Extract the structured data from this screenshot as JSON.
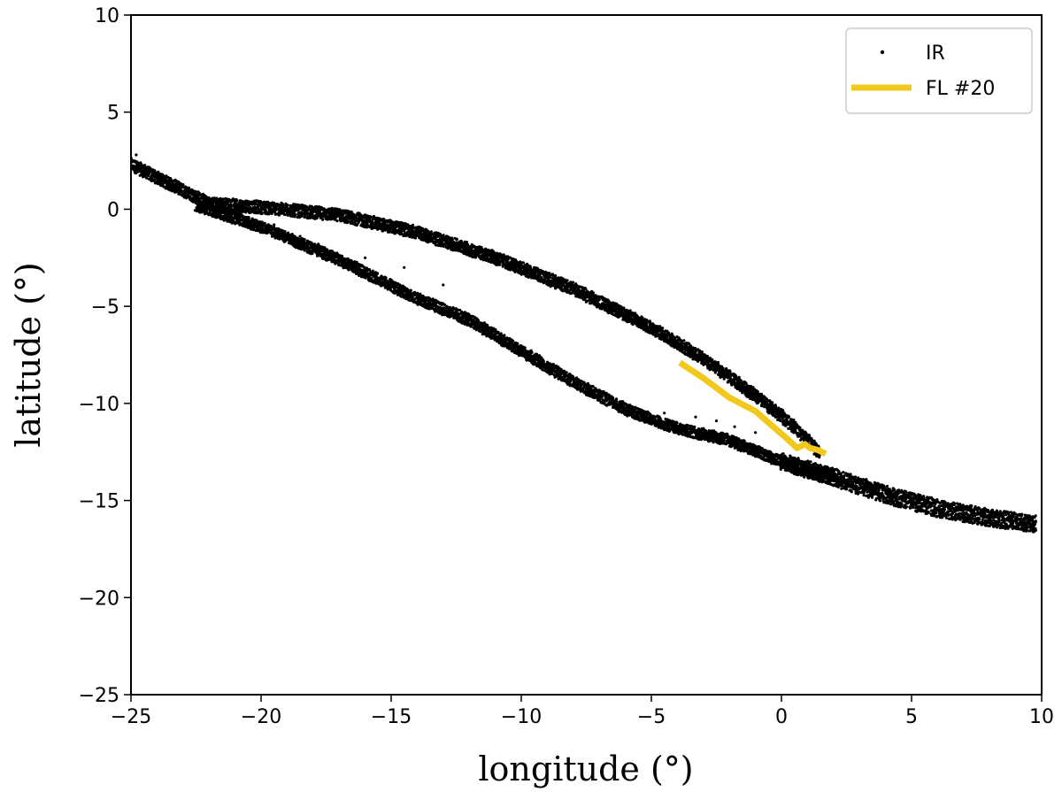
{
  "chart_data": {
    "type": "scatter",
    "xlabel": "longitude (°)",
    "ylabel": "latitude (°)",
    "xlim": [
      -25,
      10
    ],
    "ylim": [
      -25,
      10
    ],
    "x_ticks": [
      -25,
      -20,
      -15,
      -10,
      -5,
      0,
      5,
      10
    ],
    "y_ticks": [
      -25,
      -20,
      -15,
      -10,
      -5,
      0,
      5,
      10
    ],
    "x_tick_labels": [
      "−25",
      "−20",
      "−15",
      "−10",
      "−5",
      "0",
      "5",
      "10"
    ],
    "y_tick_labels": [
      "−25",
      "−20",
      "−15",
      "−10",
      "−5",
      "0",
      "5",
      "10"
    ],
    "grid": false,
    "legend_position": "top-right",
    "series": [
      {
        "name": "IR",
        "kind": "scatter",
        "color": "#000000",
        "bands": [
          {
            "label_group": "upper-branch",
            "centerline": [
              [
                -25,
                2.3
              ],
              [
                -22,
                0.3
              ],
              [
                -20,
                0.1
              ],
              [
                -17,
                -0.3
              ],
              [
                -14,
                -1.2
              ],
              [
                -11,
                -2.5
              ],
              [
                -8,
                -4.1
              ],
              [
                -5,
                -6.1
              ],
              [
                -3,
                -7.7
              ],
              [
                -1,
                -9.6
              ],
              [
                0.5,
                -11.2
              ],
              [
                1.5,
                -12.6
              ]
            ],
            "thickness": 0.65
          },
          {
            "label_group": "lower-branch",
            "centerline": [
              [
                -22.5,
                0.2
              ],
              [
                -20,
                -0.9
              ],
              [
                -17,
                -2.6
              ],
              [
                -14,
                -4.6
              ],
              [
                -12,
                -5.7
              ],
              [
                -10,
                -7.3
              ],
              [
                -8,
                -8.9
              ],
              [
                -6,
                -10.3
              ],
              [
                -4,
                -11.3
              ],
              [
                -2,
                -11.9
              ],
              [
                0,
                -13.0
              ],
              [
                2,
                -13.7
              ]
            ],
            "thickness": 0.6
          },
          {
            "label_group": "tail",
            "centerline": [
              [
                0,
                -13.0
              ],
              [
                2,
                -13.8
              ],
              [
                4,
                -14.7
              ],
              [
                6,
                -15.4
              ],
              [
                8,
                -15.9
              ],
              [
                9.8,
                -16.2
              ]
            ],
            "thickness": 0.9
          }
        ],
        "scattered_points": [
          [
            -24.8,
            2.8
          ],
          [
            -19.5,
            -0.8
          ],
          [
            -18.5,
            -1.4
          ],
          [
            -17.8,
            -1.8
          ],
          [
            -16,
            -2.5
          ],
          [
            -14.5,
            -3.0
          ],
          [
            -13,
            -3.9
          ],
          [
            -6.1,
            -9.9
          ],
          [
            -4.5,
            -10.5
          ],
          [
            -3.3,
            -10.7
          ],
          [
            -2.5,
            -10.9
          ],
          [
            -1.8,
            -11.2
          ],
          [
            -1.0,
            -11.5
          ],
          [
            0.4,
            -13.2
          ],
          [
            0.9,
            -13.5
          ]
        ]
      },
      {
        "name": "FL #20",
        "kind": "line",
        "color": "#f2c81d",
        "x": [
          -3.9,
          -3.0,
          -2.0,
          -1.0,
          -0.4,
          0.2,
          0.6,
          0.9,
          1.1,
          1.4,
          1.7
        ],
        "y": [
          -7.9,
          -8.7,
          -9.7,
          -10.4,
          -11.1,
          -11.8,
          -12.3,
          -12.1,
          -12.3,
          -12.4,
          -12.6
        ]
      }
    ]
  }
}
